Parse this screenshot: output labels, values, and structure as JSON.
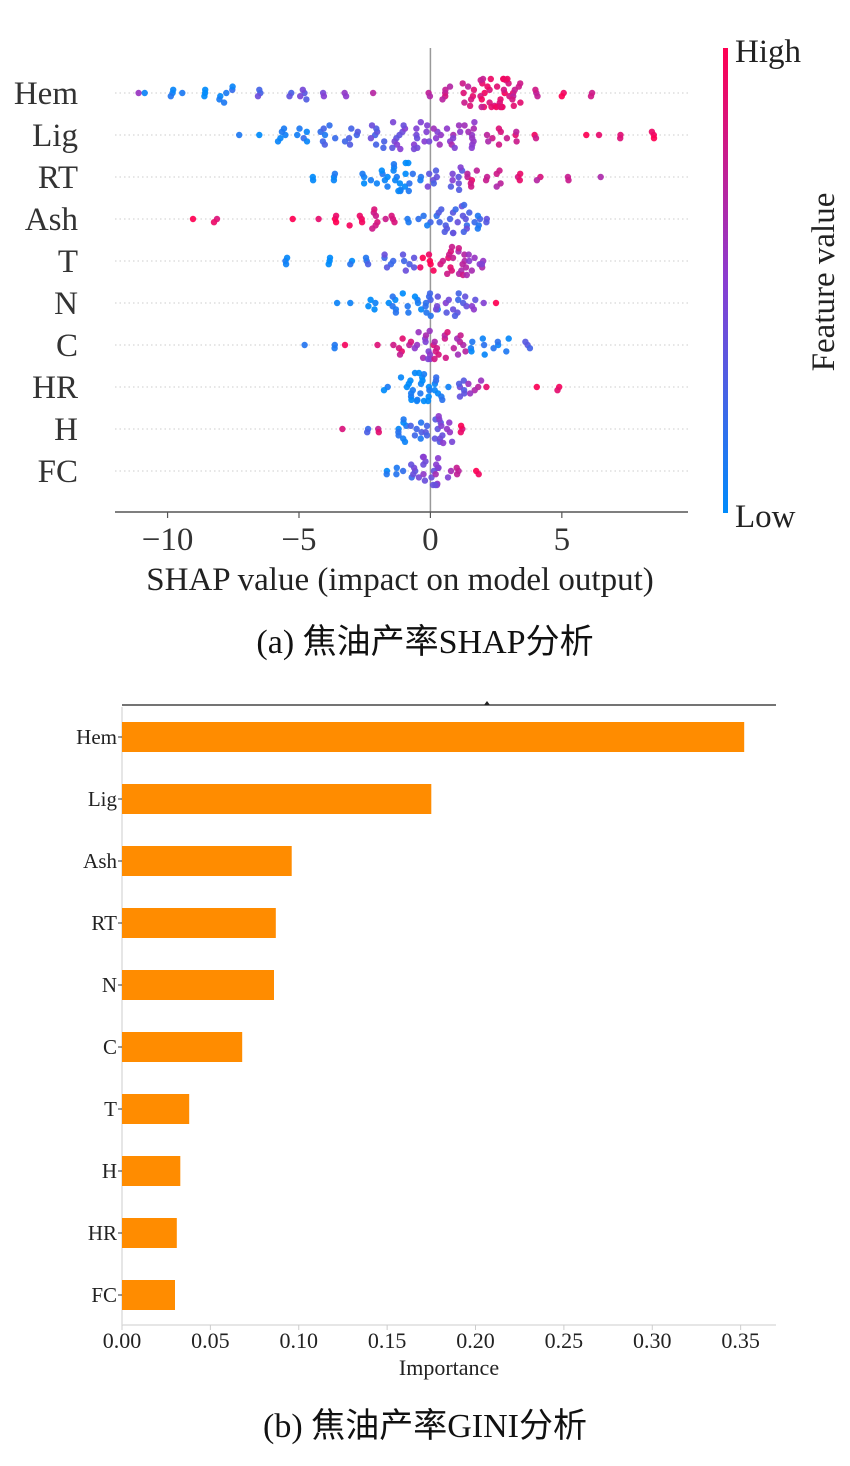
{
  "captions": {
    "a": "(a) 焦油产率SHAP分析",
    "b": "(b) 焦油产率GINI分析"
  },
  "colors": {
    "low": "#008bfb",
    "mid": "#8a3dd1",
    "high": "#ff0052",
    "bar": "#ff8c00"
  },
  "chart_data": [
    {
      "type": "scatter",
      "subtype": "shap-beeswarm",
      "title": "",
      "xlabel": "SHAP value (impact on model output)",
      "ylabel": "",
      "xlim": [
        -12.0,
        9.8
      ],
      "xticks": [
        -10,
        -5,
        0,
        5
      ],
      "xtick_labels": [
        "−10",
        "−5",
        "0",
        "5"
      ],
      "grid": "dotted row lines",
      "colorbar": {
        "label": "Feature value",
        "high_label": "High",
        "low_label": "Low",
        "placement": "right"
      },
      "features": [
        "Hem",
        "Lig",
        "RT",
        "Ash",
        "T",
        "N",
        "C",
        "HR",
        "H",
        "FC"
      ],
      "point_note": "each cluster: [shap_value, feature_value_level 0=low..1=high, point_count]",
      "clusters": {
        "Hem": [
          [
            -11.1,
            0.55,
            1
          ],
          [
            -10.8,
            0.1,
            1
          ],
          [
            -9.8,
            0.05,
            3
          ],
          [
            -9.4,
            0.05,
            1
          ],
          [
            -8.6,
            0.05,
            3
          ],
          [
            -7.8,
            0.1,
            6
          ],
          [
            -6.5,
            0.3,
            3
          ],
          [
            -5.3,
            0.3,
            2
          ],
          [
            -4.7,
            0.35,
            4
          ],
          [
            -4.1,
            0.45,
            2
          ],
          [
            -3.2,
            0.6,
            2
          ],
          [
            -2.1,
            0.7,
            1
          ],
          [
            -0.1,
            0.7,
            2
          ],
          [
            0.6,
            0.75,
            5
          ],
          [
            1.4,
            0.8,
            8
          ],
          [
            2.2,
            0.85,
            14
          ],
          [
            2.8,
            0.9,
            16
          ],
          [
            3.4,
            0.8,
            8
          ],
          [
            4.0,
            0.7,
            3
          ],
          [
            5.0,
            0.95,
            2
          ],
          [
            6.1,
            0.7,
            2
          ]
        ],
        "Lig": [
          [
            -7.3,
            0.05,
            1
          ],
          [
            -6.5,
            0.05,
            1
          ],
          [
            -5.8,
            0.05,
            5
          ],
          [
            -4.8,
            0.1,
            5
          ],
          [
            -3.9,
            0.2,
            7
          ],
          [
            -3.0,
            0.3,
            6
          ],
          [
            -2.0,
            0.35,
            8
          ],
          [
            -1.2,
            0.4,
            10
          ],
          [
            -0.4,
            0.45,
            10
          ],
          [
            0.2,
            0.5,
            6
          ],
          [
            0.9,
            0.55,
            8
          ],
          [
            1.6,
            0.6,
            9
          ],
          [
            2.4,
            0.75,
            6
          ],
          [
            3.2,
            0.8,
            4
          ],
          [
            4.0,
            0.85,
            2
          ],
          [
            5.9,
            0.95,
            1
          ],
          [
            6.5,
            0.95,
            1
          ],
          [
            7.3,
            0.9,
            2
          ],
          [
            8.5,
            0.95,
            3
          ]
        ],
        "RT": [
          [
            -4.4,
            0.05,
            2
          ],
          [
            -3.6,
            0.05,
            3
          ],
          [
            -2.5,
            0.05,
            4
          ],
          [
            -1.8,
            0.05,
            6
          ],
          [
            -1.1,
            0.05,
            14
          ],
          [
            -0.6,
            0.1,
            4
          ],
          [
            0.2,
            0.35,
            6
          ],
          [
            1.0,
            0.4,
            8
          ],
          [
            1.7,
            0.8,
            6
          ],
          [
            2.4,
            0.75,
            6
          ],
          [
            3.4,
            0.85,
            3
          ],
          [
            4.1,
            0.75,
            2
          ],
          [
            5.2,
            0.8,
            2
          ],
          [
            6.5,
            0.7,
            1
          ]
        ],
        "Ash": [
          [
            -9.0,
            0.95,
            1
          ],
          [
            -8.2,
            0.95,
            2
          ],
          [
            -5.3,
            0.95,
            1
          ],
          [
            -4.3,
            0.95,
            1
          ],
          [
            -3.6,
            0.95,
            3
          ],
          [
            -2.8,
            0.9,
            4
          ],
          [
            -2.0,
            0.85,
            7
          ],
          [
            -1.4,
            0.9,
            3
          ],
          [
            -0.8,
            0.1,
            2
          ],
          [
            -0.2,
            0.15,
            4
          ],
          [
            0.5,
            0.25,
            8
          ],
          [
            1.1,
            0.3,
            12
          ],
          [
            1.7,
            0.2,
            6
          ],
          [
            2.2,
            0.35,
            2
          ]
        ],
        "T": [
          [
            -5.5,
            0.05,
            3
          ],
          [
            -3.8,
            0.05,
            3
          ],
          [
            -3.0,
            0.05,
            2
          ],
          [
            -2.4,
            0.2,
            3
          ],
          [
            -1.7,
            0.3,
            5
          ],
          [
            -0.8,
            0.3,
            6
          ],
          [
            -0.1,
            0.95,
            6
          ],
          [
            0.6,
            0.85,
            8
          ],
          [
            1.1,
            0.7,
            12
          ],
          [
            1.7,
            0.6,
            6
          ],
          [
            2.0,
            0.55,
            2
          ]
        ],
        "N": [
          [
            -3.6,
            0.05,
            1
          ],
          [
            -3.0,
            0.05,
            1
          ],
          [
            -2.2,
            0.05,
            4
          ],
          [
            -1.3,
            0.05,
            7
          ],
          [
            -0.6,
            0.05,
            6
          ],
          [
            0.0,
            0.2,
            8
          ],
          [
            0.5,
            0.4,
            6
          ],
          [
            1.1,
            0.3,
            8
          ],
          [
            1.8,
            0.45,
            4
          ],
          [
            2.5,
            0.95,
            1
          ]
        ],
        "C": [
          [
            -4.8,
            0.05,
            1
          ],
          [
            -3.7,
            0.05,
            2
          ],
          [
            -3.2,
            0.95,
            1
          ],
          [
            -2.1,
            0.95,
            1
          ],
          [
            -1.4,
            0.7,
            1
          ],
          [
            -0.9,
            0.8,
            6
          ],
          [
            -0.3,
            0.55,
            12
          ],
          [
            0.4,
            0.75,
            10
          ],
          [
            1.1,
            0.7,
            7
          ],
          [
            1.8,
            0.1,
            6
          ],
          [
            2.7,
            0.1,
            5
          ],
          [
            3.7,
            0.25,
            3
          ]
        ],
        "HR": [
          [
            -1.7,
            0.05,
            2
          ],
          [
            -0.9,
            0.05,
            8
          ],
          [
            -0.3,
            0.05,
            14
          ],
          [
            0.4,
            0.1,
            8
          ],
          [
            1.0,
            0.35,
            6
          ],
          [
            1.7,
            0.65,
            5
          ],
          [
            2.2,
            0.95,
            1
          ],
          [
            4.0,
            0.95,
            1
          ],
          [
            4.9,
            0.95,
            2
          ]
        ],
        "H": [
          [
            -3.4,
            0.75,
            1
          ],
          [
            -2.4,
            0.3,
            2
          ],
          [
            -2.0,
            0.8,
            2
          ],
          [
            -1.2,
            0.1,
            8
          ],
          [
            -0.5,
            0.2,
            6
          ],
          [
            0.1,
            0.3,
            8
          ],
          [
            0.6,
            0.45,
            10
          ],
          [
            1.2,
            0.9,
            3
          ]
        ],
        "FC": [
          [
            -1.6,
            0.05,
            2
          ],
          [
            -1.0,
            0.2,
            4
          ],
          [
            -0.5,
            0.4,
            5
          ],
          [
            0.0,
            0.45,
            14
          ],
          [
            0.5,
            0.55,
            5
          ],
          [
            1.0,
            0.8,
            3
          ],
          [
            1.8,
            0.95,
            2
          ]
        ]
      }
    },
    {
      "type": "bar",
      "orientation": "horizontal",
      "title": "",
      "xlabel": "Importance",
      "ylabel": "",
      "xlim": [
        0,
        0.37
      ],
      "xticks": [
        0.0,
        0.05,
        0.1,
        0.15,
        0.2,
        0.25,
        0.3,
        0.35
      ],
      "xtick_labels": [
        "0.00",
        "0.05",
        "0.10",
        "0.15",
        "0.20",
        "0.25",
        "0.30",
        "0.35"
      ],
      "grid": false,
      "categories": [
        "Hem",
        "Lig",
        "Ash",
        "RT",
        "N",
        "C",
        "T",
        "H",
        "HR",
        "FC"
      ],
      "values": [
        0.352,
        0.175,
        0.096,
        0.087,
        0.086,
        0.068,
        0.038,
        0.033,
        0.031,
        0.03
      ]
    }
  ]
}
